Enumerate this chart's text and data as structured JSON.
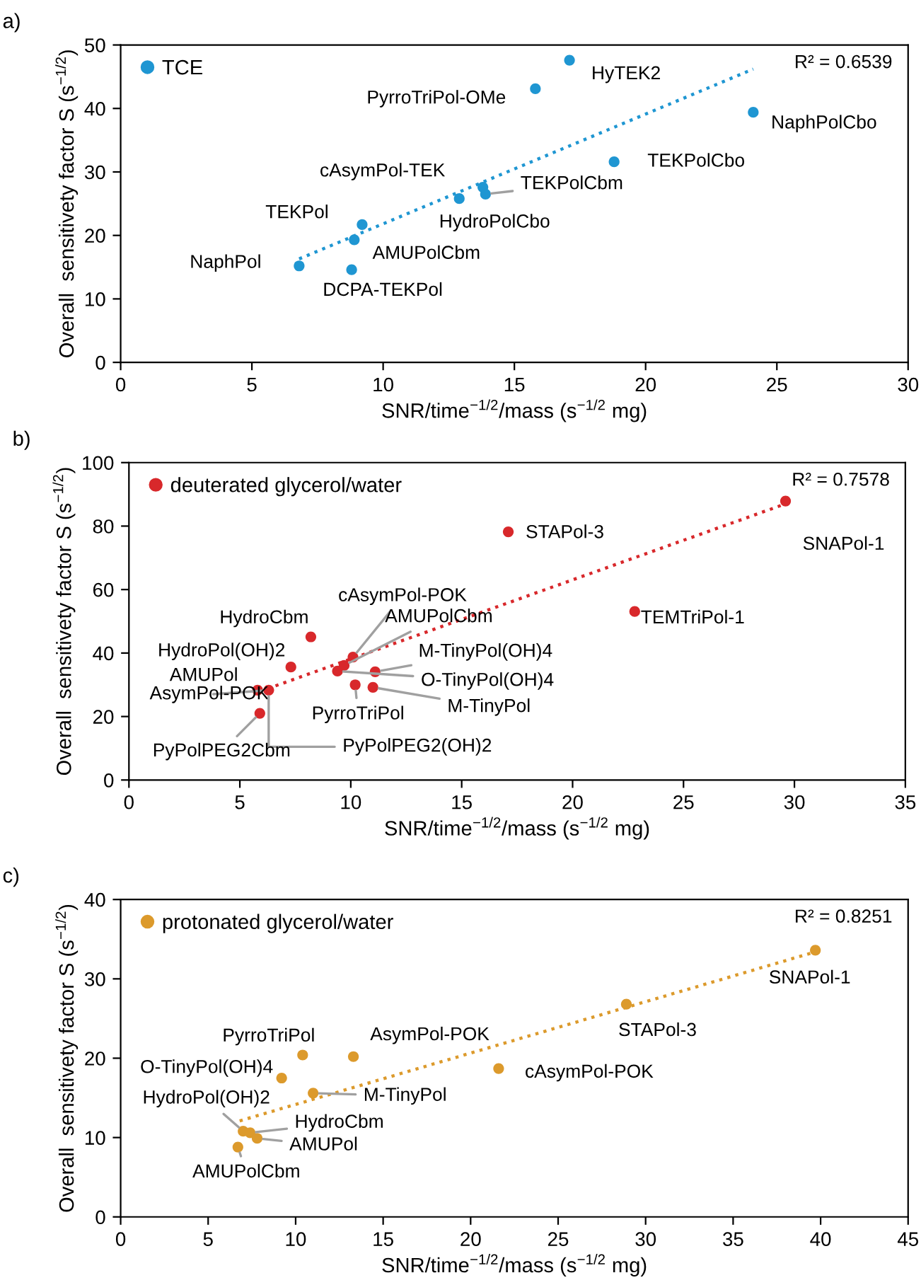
{
  "chart_data": [
    {
      "type": "scatter",
      "title": "a)",
      "xlabel": "SNR/time$^{−1/2}$/mass (s$^{−1/2}$ mg)",
      "ylabel": "Overall  sensitivety factor S (s$^{−1/2}$)",
      "xlim": [
        0,
        30
      ],
      "ylim": [
        0,
        50
      ],
      "xticks": [
        0,
        5,
        10,
        15,
        20,
        25,
        30
      ],
      "yticks": [
        0,
        10,
        20,
        30,
        40,
        50
      ],
      "grid": false,
      "legend": "top left",
      "marker": "circle",
      "series": [
        {
          "name": "TCE",
          "type": "scatter",
          "color": "#1f96d2",
          "x": [
            17.1,
            15.8,
            24.1,
            18.8,
            13.8,
            13.9,
            12.9,
            9.2,
            8.9,
            6.8,
            8.8
          ],
          "values": [
            47.6,
            43.1,
            39.4,
            31.6,
            27.6,
            26.5,
            25.8,
            21.7,
            19.3,
            15.2,
            14.6
          ]
        },
        {
          "type": "line",
          "color": "#1f96d2",
          "line_style": "dotted",
          "marker": "none",
          "x": [
            6.8,
            24.1
          ],
          "values": [
            16.3,
            46.2
          ]
        }
      ],
      "annotations": [
        "R² = 0.6539",
        {
          "text": "HyTEK2",
          "x": 17.1,
          "y": 47.6
        },
        {
          "text": "PyrroTriPol-OMe",
          "x": 15.8,
          "y": 43.1
        },
        {
          "text": "NaphPolCbo",
          "x": 24.1,
          "y": 39.4
        },
        {
          "text": "TEKPolCbo",
          "x": 18.8,
          "y": 31.6
        },
        {
          "text": "cAsymPol-TEK",
          "x": 13.8,
          "y": 27.6
        },
        {
          "text": "TEKPolCbm",
          "x": 13.9,
          "y": 26.5
        },
        {
          "text": "HydroPolCbo",
          "x": 12.9,
          "y": 25.8
        },
        {
          "text": "TEKPol",
          "x": 9.2,
          "y": 21.7
        },
        {
          "text": "AMUPolCbm",
          "x": 8.9,
          "y": 19.3
        },
        {
          "text": "NaphPol",
          "x": 6.8,
          "y": 15.2
        },
        {
          "text": "DCPA-TEKPol",
          "x": 8.8,
          "y": 14.6
        }
      ]
    },
    {
      "type": "scatter",
      "title": "b)",
      "xlabel": "SNR/time$^{−1/2}$/mass (s$^{−1/2}$ mg)",
      "ylabel": "Overall  sensitivety factor S (s$^{−1/2}$)",
      "xlim": [
        0,
        35
      ],
      "ylim": [
        0,
        100
      ],
      "xticks": [
        0,
        5,
        10,
        15,
        20,
        25,
        30,
        35
      ],
      "yticks": [
        0,
        20,
        40,
        60,
        80,
        100
      ],
      "grid": false,
      "legend": "top left",
      "marker": "circle",
      "series": [
        {
          "name": "deuterated glycerol/water",
          "type": "scatter",
          "color": "#d8282b",
          "x": [
            29.6,
            17.1,
            22.8,
            8.2,
            10.1,
            9.7,
            11.1,
            9.4,
            7.3,
            5.8,
            6.3,
            10.2,
            11.0,
            5.9
          ],
          "values": [
            87.9,
            78.2,
            53.1,
            45.1,
            38.7,
            36.1,
            34.1,
            34.3,
            35.6,
            28.3,
            28.3,
            30.0,
            29.2,
            21.0
          ]
        },
        {
          "type": "line",
          "color": "#d8282b",
          "line_style": "dotted",
          "marker": "none",
          "x": [
            5.9,
            29.6
          ],
          "values": [
            27.9,
            87.0
          ]
        }
      ],
      "annotations": [
        "R² = 0.7578",
        {
          "text": "SNAPol-1",
          "x": 29.6,
          "y": 87.9
        },
        {
          "text": "STAPol-3",
          "x": 17.1,
          "y": 78.2
        },
        {
          "text": "TEMTriPol-1",
          "x": 22.8,
          "y": 53.1
        },
        {
          "text": "HydroCbm",
          "x": 8.2,
          "y": 45.1
        },
        {
          "text": "cAsymPol-POK",
          "x": 10.1,
          "y": 38.7
        },
        {
          "text": "AMUPolCbm",
          "x": 9.7,
          "y": 36.1
        },
        {
          "text": "M-TinyPol(OH)4",
          "x": 11.1,
          "y": 34.1
        },
        {
          "text": "O-TinyPol(OH)4",
          "x": 9.4,
          "y": 34.3
        },
        {
          "text": "HydroPol(OH)2",
          "x": 7.3,
          "y": 35.6
        },
        {
          "text": "AMUPol",
          "x": 5.8,
          "y": 28.3
        },
        {
          "text": "AsymPol-POK",
          "x": 6.3,
          "y": 28.3
        },
        {
          "text": "PyrroTriPol",
          "x": 10.2,
          "y": 30.0
        },
        {
          "text": "M-TinyPol",
          "x": 11.0,
          "y": 29.2
        },
        {
          "text": "PyPolPEG2(OH)2",
          "x": 6.3,
          "y": 28.3
        },
        {
          "text": "PyPolPEG2Cbm",
          "x": 5.9,
          "y": 21.0
        }
      ]
    },
    {
      "type": "scatter",
      "title": "c)",
      "xlabel": "SNR/time$^{−1/2}$/mass (s$^{−1/2}$ mg)",
      "ylabel": "Overall  sensitivety factor S (s$^{−1/2}$)",
      "xlim": [
        0,
        45
      ],
      "ylim": [
        0,
        40
      ],
      "xticks": [
        0,
        5,
        10,
        15,
        20,
        25,
        30,
        35,
        40,
        45
      ],
      "yticks": [
        0,
        10,
        20,
        30,
        40
      ],
      "grid": false,
      "legend": "top left",
      "marker": "circle",
      "series": [
        {
          "name": "protonated glycerol/water",
          "type": "scatter",
          "color": "#dc9a2c",
          "x": [
            39.7,
            28.9,
            21.6,
            13.3,
            10.4,
            9.2,
            11.0,
            7.0,
            7.4,
            7.8,
            6.7
          ],
          "values": [
            33.6,
            26.8,
            18.7,
            20.2,
            20.4,
            17.5,
            15.6,
            10.8,
            10.6,
            9.9,
            8.8
          ]
        },
        {
          "type": "line",
          "color": "#dc9a2c",
          "line_style": "dotted",
          "marker": "none",
          "x": [
            6.8,
            39.7
          ],
          "values": [
            12.1,
            33.4
          ]
        }
      ],
      "annotations": [
        "R² = 0.8251",
        {
          "text": "SNAPol-1",
          "x": 39.7,
          "y": 33.6
        },
        {
          "text": "STAPol-3",
          "x": 28.9,
          "y": 26.8
        },
        {
          "text": "cAsymPol-POK",
          "x": 21.6,
          "y": 18.7
        },
        {
          "text": "AsymPol-POK",
          "x": 13.3,
          "y": 20.2
        },
        {
          "text": "PyrroTriPol",
          "x": 10.4,
          "y": 20.4
        },
        {
          "text": "O-TinyPol(OH)4",
          "x": 9.2,
          "y": 17.5
        },
        {
          "text": "M-TinyPol",
          "x": 11.0,
          "y": 15.6
        },
        {
          "text": "HydroPol(OH)2",
          "x": 7.0,
          "y": 10.8
        },
        {
          "text": "HydroCbm",
          "x": 7.4,
          "y": 10.6
        },
        {
          "text": "AMUPol",
          "x": 7.8,
          "y": 9.9
        },
        {
          "text": "AMUPolCbm",
          "x": 6.7,
          "y": 8.8
        }
      ]
    }
  ]
}
